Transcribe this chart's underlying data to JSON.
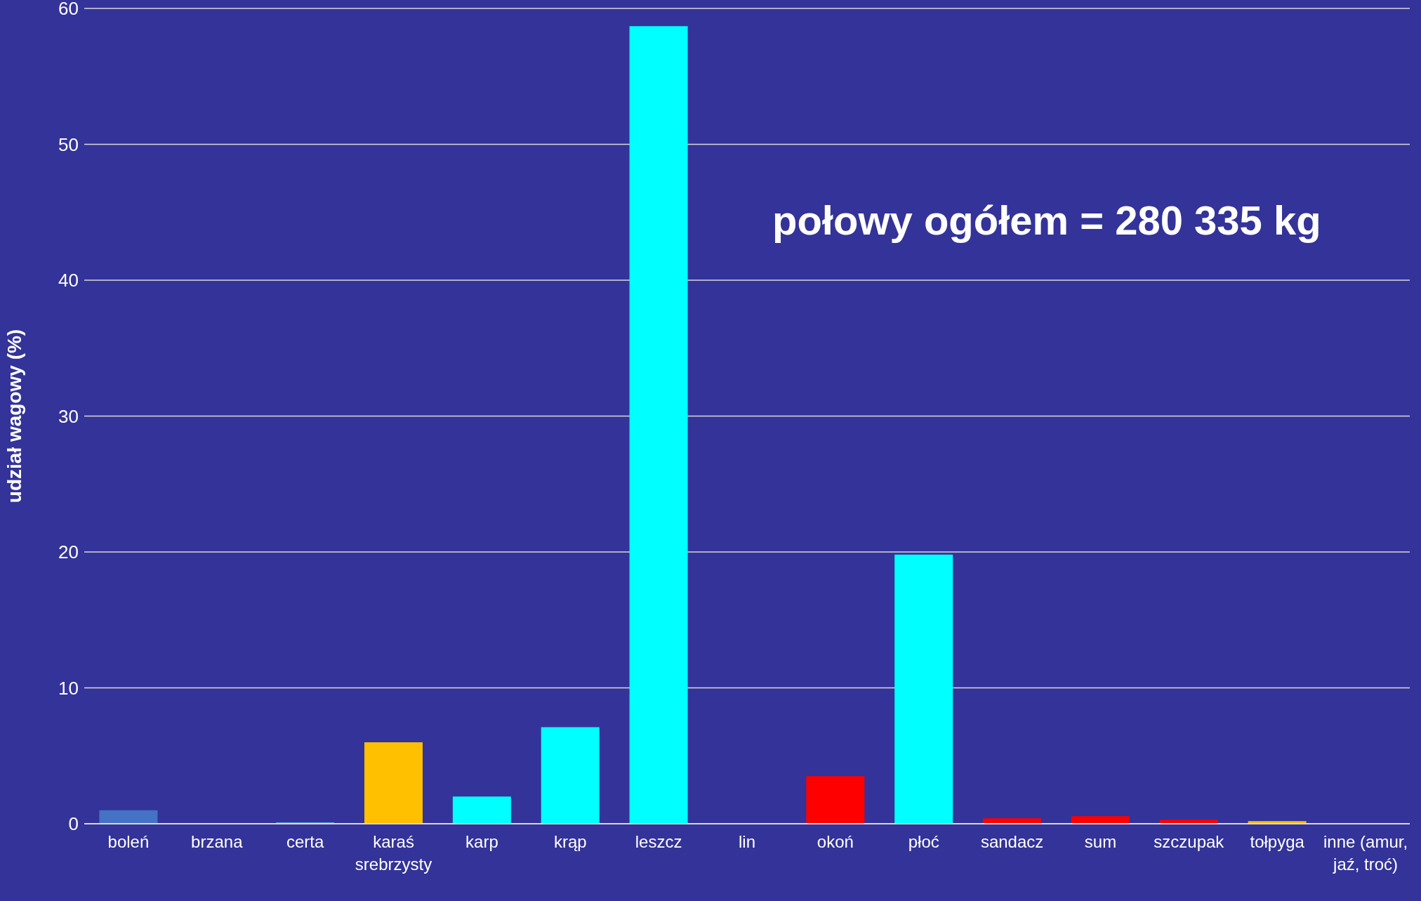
{
  "chart_data": {
    "type": "bar",
    "ylabel": "udział wagowy (%)",
    "categories": [
      "boleń",
      "brzana",
      "certa",
      "karaś srebrzysty",
      "karp",
      "krąp",
      "leszcz",
      "lin",
      "okoń",
      "płoć",
      "sandacz",
      "sum",
      "szczupak",
      "tołpyga",
      "inne (amur, jaź, troć)"
    ],
    "values": [
      1.0,
      null,
      0.1,
      6.0,
      2.0,
      7.1,
      58.7,
      null,
      3.5,
      19.8,
      0.4,
      0.55,
      0.3,
      0.2,
      null
    ],
    "colors": [
      "#4472c4",
      "#5b9bd5",
      "#5b9bd5",
      "#ffc000",
      "#00ffff",
      "#00ffff",
      "#00ffff",
      "#5b9bd5",
      "#ff0000",
      "#00ffff",
      "#ff0000",
      "#ff0000",
      "#ff0000",
      "#ffc000",
      "#5b9bd5"
    ],
    "ylim": [
      0,
      60
    ],
    "yticks": [
      0,
      10,
      20,
      30,
      40,
      50,
      60
    ],
    "grid": "y",
    "annotations": [
      "połowy ogółem = 280 335 kg"
    ]
  }
}
